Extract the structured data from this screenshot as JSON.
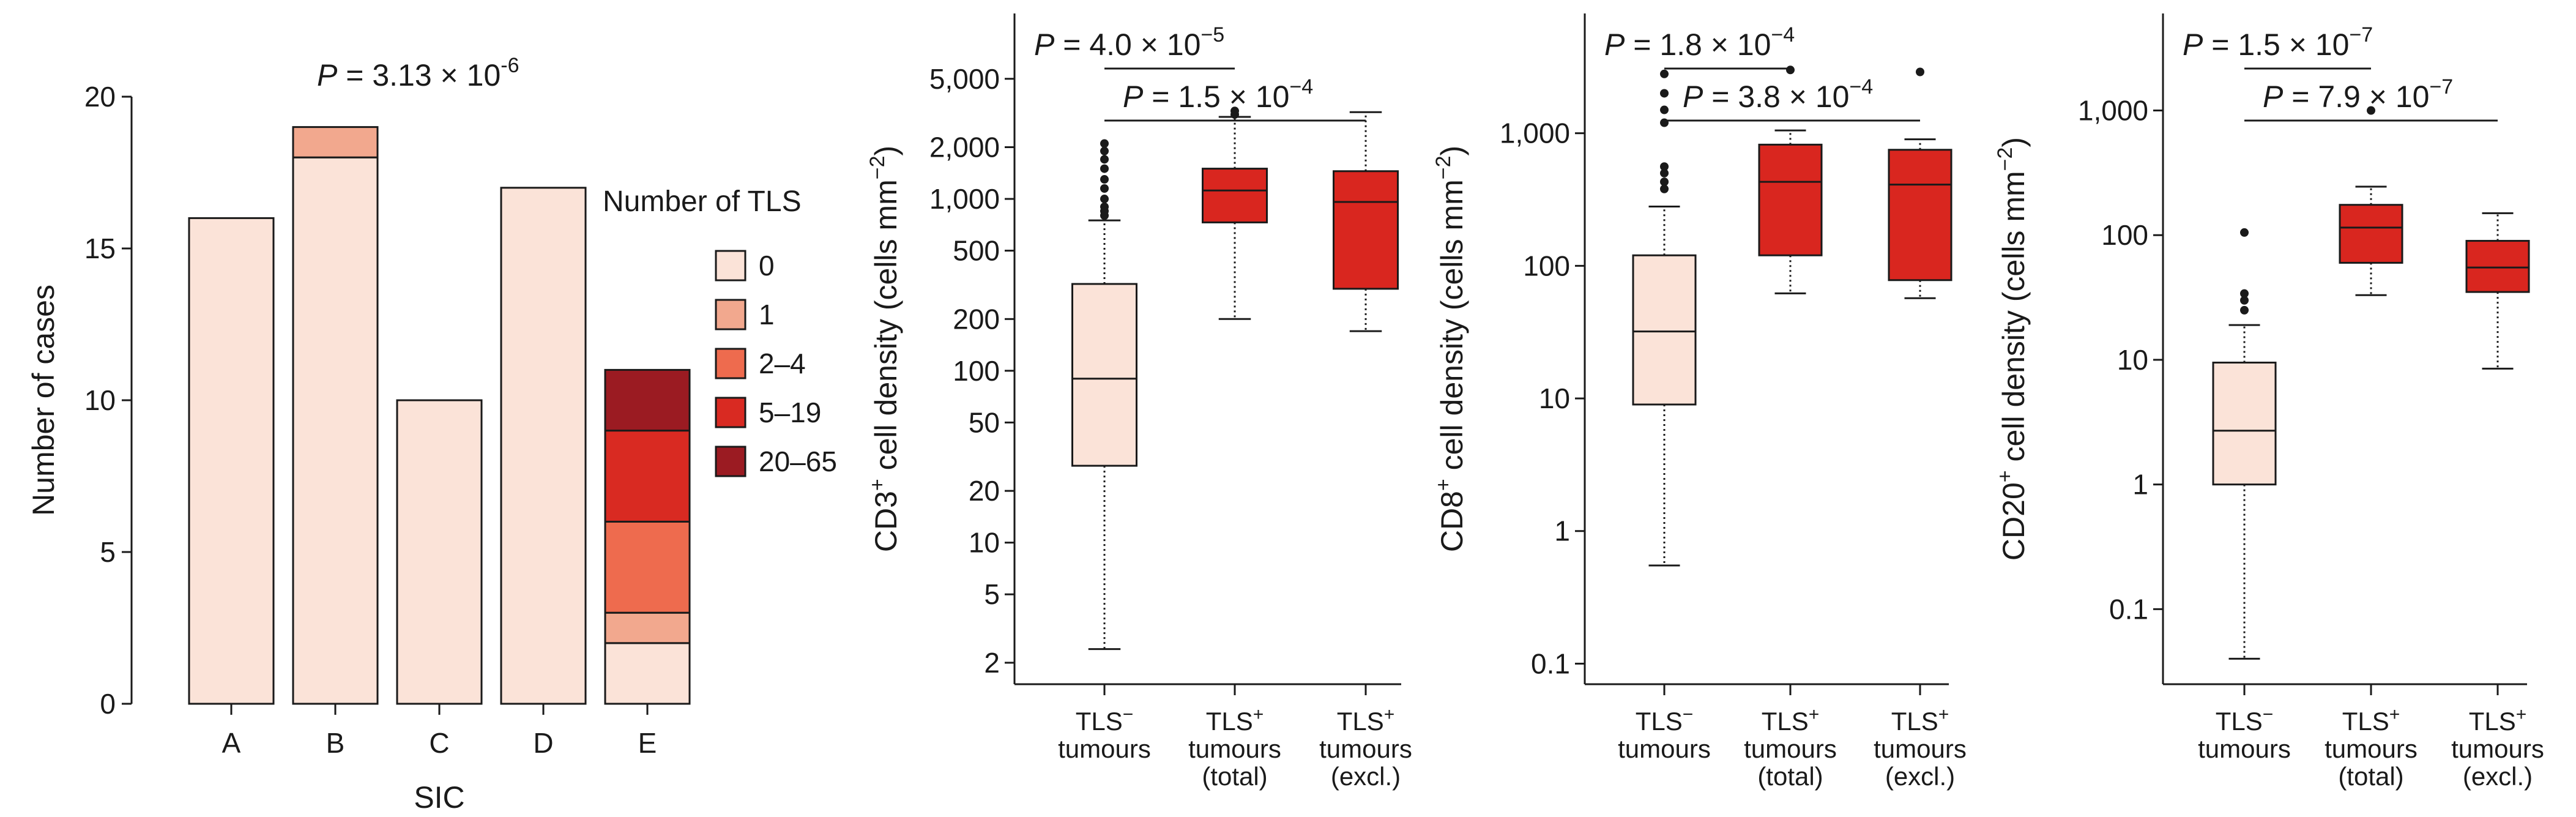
{
  "colors": {
    "tls0": "#FBE3D8",
    "tls1": "#F2A88E",
    "tls2_4": "#EE6B4E",
    "tls5_19": "#D92A22",
    "tls20_65": "#9B1B22",
    "box_neg": "#FBE3D8",
    "box_pos": "#D9261F",
    "ink": "#1a1a1a"
  },
  "chart_data": [
    {
      "id": "sic",
      "type": "stacked-bar",
      "ylabel": "Number of cases",
      "xlabel": "SIC",
      "ylim": [
        0,
        20
      ],
      "yticks": [
        "0",
        "5",
        "10",
        "15",
        "20"
      ],
      "categories": [
        "A",
        "B",
        "C",
        "D",
        "E"
      ],
      "pvalue": {
        "base": "3.13",
        "exp": "-6"
      },
      "legend": {
        "title": "Number of TLS",
        "position": "right",
        "items": [
          "0",
          "1",
          "2–4",
          "5–19",
          "20–65"
        ]
      },
      "series": [
        {
          "name": "0",
          "values": [
            16,
            18,
            10,
            17,
            2
          ]
        },
        {
          "name": "1",
          "values": [
            0,
            1,
            0,
            0,
            1
          ]
        },
        {
          "name": "2–4",
          "values": [
            0,
            0,
            0,
            0,
            3
          ]
        },
        {
          "name": "5–19",
          "values": [
            0,
            0,
            0,
            0,
            3
          ]
        },
        {
          "name": "20–65",
          "values": [
            0,
            0,
            0,
            0,
            2
          ]
        }
      ]
    },
    {
      "id": "cd3",
      "type": "box",
      "yscale": "log",
      "ylabel_pre": "CD3",
      "ylabel_post": " cell density (cells mm",
      "ylim": [
        1.5,
        12000
      ],
      "yticks": [
        2,
        5,
        10,
        20,
        50,
        100,
        200,
        500,
        1000,
        2000,
        5000
      ],
      "ytick_labels": [
        "2",
        "5",
        "10",
        "20",
        "50",
        "100",
        "200",
        "500",
        "1,000",
        "2,000",
        "5,000"
      ],
      "categories": [
        {
          "l1": "TLS",
          "sup": "−",
          "l2": "tumours",
          "l3": ""
        },
        {
          "l1": "TLS",
          "sup": "+",
          "l2": "tumours",
          "l3": "(total)"
        },
        {
          "l1": "TLS",
          "sup": "+",
          "l2": "tumours",
          "l3": "(excl.)"
        }
      ],
      "boxes": [
        {
          "whislo": 2.4,
          "q1": 28,
          "med": 90,
          "q3": 320,
          "whishi": 750,
          "fliers": [
            800,
            850,
            900,
            1000,
            1150,
            1300,
            1500,
            1700,
            1900,
            2100
          ]
        },
        {
          "whislo": 200,
          "q1": 730,
          "med": 1120,
          "q3": 1500,
          "whishi": 3000,
          "fliers": [
            3100,
            3250
          ]
        },
        {
          "whislo": 170,
          "q1": 300,
          "med": 960,
          "q3": 1450,
          "whishi": 3200,
          "fliers": []
        }
      ],
      "comparisons": [
        {
          "base": "4.0",
          "exp": "−5"
        },
        {
          "base": "1.5",
          "exp": "−4"
        }
      ]
    },
    {
      "id": "cd8",
      "type": "box",
      "yscale": "log",
      "ylabel_pre": "CD8",
      "ylabel_post": " cell density (cells mm",
      "ylim": [
        0.07,
        8000
      ],
      "yticks": [
        0.1,
        1,
        10,
        100,
        1000
      ],
      "ytick_labels": [
        "0.1",
        "1",
        "10",
        "100",
        "1,000"
      ],
      "categories": [
        {
          "l1": "TLS",
          "sup": "−",
          "l2": "tumours",
          "l3": ""
        },
        {
          "l1": "TLS",
          "sup": "+",
          "l2": "tumours",
          "l3": "(total)"
        },
        {
          "l1": "TLS",
          "sup": "+",
          "l2": "tumours",
          "l3": "(excl.)"
        }
      ],
      "boxes": [
        {
          "whislo": 0.55,
          "q1": 9,
          "med": 32,
          "q3": 120,
          "whishi": 280,
          "fliers": [
            380,
            430,
            500,
            560,
            1200,
            1500,
            2000,
            2800
          ]
        },
        {
          "whislo": 62,
          "q1": 120,
          "med": 430,
          "q3": 820,
          "whishi": 1050,
          "fliers": [
            3000
          ]
        },
        {
          "whislo": 57,
          "q1": 78,
          "med": 410,
          "q3": 750,
          "whishi": 900,
          "fliers": [
            2900
          ]
        }
      ],
      "comparisons": [
        {
          "base": "1.8",
          "exp": "−4"
        },
        {
          "base": "3.8",
          "exp": "−4"
        }
      ]
    },
    {
      "id": "cd20",
      "type": "box",
      "yscale": "log",
      "ylabel_pre": "CD20",
      "ylabel_post": " cell density (cells mm",
      "ylim": [
        0.025,
        6000
      ],
      "yticks": [
        0.1,
        1,
        10,
        100,
        1000
      ],
      "ytick_labels": [
        "0.1",
        "1",
        "10",
        "100",
        "1,000"
      ],
      "categories": [
        {
          "l1": "TLS",
          "sup": "−",
          "l2": "tumours",
          "l3": ""
        },
        {
          "l1": "TLS",
          "sup": "+",
          "l2": "tumours",
          "l3": "(total)"
        },
        {
          "l1": "TLS",
          "sup": "+",
          "l2": "tumours",
          "l3": "(excl.)"
        }
      ],
      "boxes": [
        {
          "whislo": 0.04,
          "q1": 1,
          "med": 2.7,
          "q3": 9.5,
          "whishi": 19,
          "fliers": [
            25,
            30,
            34,
            105
          ]
        },
        {
          "whislo": 33,
          "q1": 60,
          "med": 115,
          "q3": 175,
          "whishi": 245,
          "fliers": [
            1000
          ]
        },
        {
          "whislo": 8.5,
          "q1": 35,
          "med": 55,
          "q3": 90,
          "whishi": 150,
          "fliers": []
        }
      ],
      "comparisons": [
        {
          "base": "1.5",
          "exp": "−7"
        },
        {
          "base": "7.9",
          "exp": "−7"
        }
      ]
    }
  ]
}
